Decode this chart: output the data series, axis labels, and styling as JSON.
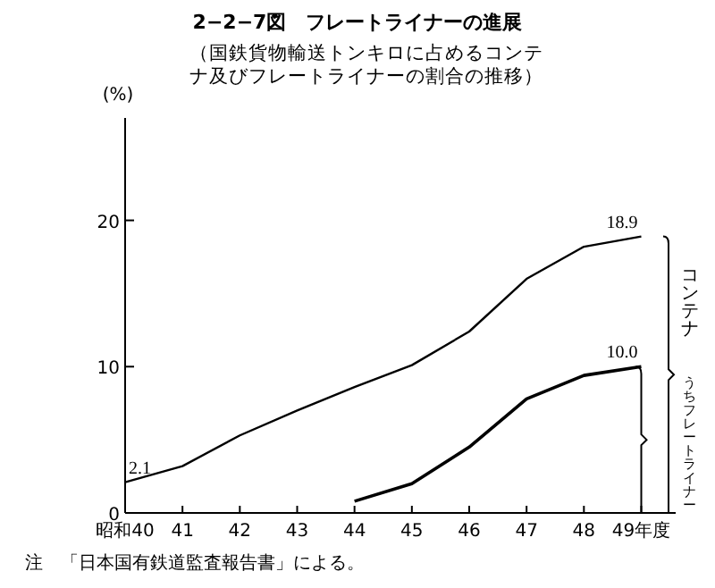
{
  "chart_data": {
    "type": "line",
    "title": "2−2−7図　フレートライナーの進展",
    "subtitle": "（国鉄貨物輸送トンキロに占めるコンテナ及びフレートライナーの割合の推移）",
    "ylabel": "(%)",
    "x": [
      40,
      41,
      42,
      43,
      44,
      45,
      46,
      47,
      48,
      49
    ],
    "xlim": [
      40,
      49.6
    ],
    "xticks": [
      {
        "value": 40,
        "label": "昭和40"
      },
      41,
      42,
      43,
      44,
      45,
      46,
      47,
      48,
      {
        "value": 49,
        "label": "49年度"
      }
    ],
    "ylim": [
      0,
      27
    ],
    "yticks": [
      0,
      10,
      20
    ],
    "grid": false,
    "marker": "none",
    "line_style": "solid",
    "series": [
      {
        "name": "コンテナ",
        "color": "#000000",
        "values": [
          2.1,
          3.2,
          5.3,
          7.0,
          8.6,
          10.1,
          12.4,
          16.0,
          18.2,
          18.9
        ],
        "value_labels": [
          "2.1",
          null,
          null,
          null,
          null,
          null,
          null,
          null,
          null,
          "18.9"
        ]
      },
      {
        "name": "うちフレートライナー",
        "color": "#000000",
        "values": [
          null,
          null,
          null,
          null,
          0.8,
          2.0,
          4.5,
          7.8,
          9.4,
          10.0
        ],
        "value_labels": [
          null,
          null,
          null,
          null,
          null,
          null,
          null,
          null,
          null,
          "10.0"
        ]
      }
    ],
    "annotations": [
      "注　「日本国有鉄道監査報告書」による。"
    ]
  }
}
